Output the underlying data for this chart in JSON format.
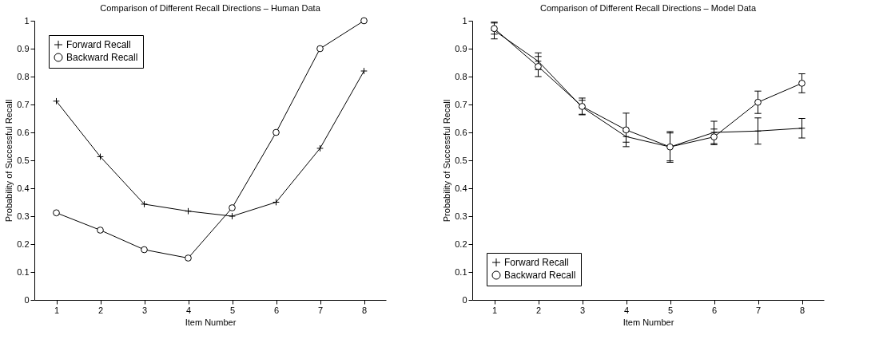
{
  "chart_data": [
    {
      "type": "line",
      "title": "Comparison of Different Recall Directions – Human Data",
      "xlabel": "Item Number",
      "ylabel": "Probability of Successful Recall",
      "x": [
        1,
        2,
        3,
        4,
        5,
        6,
        7,
        8
      ],
      "xlim": [
        0.5,
        8.5
      ],
      "xticks": [
        1,
        2,
        3,
        4,
        5,
        6,
        7,
        8
      ],
      "ylim": [
        0,
        1
      ],
      "yticks": [
        0,
        0.1,
        0.2,
        0.3,
        0.4,
        0.5,
        0.6,
        0.7,
        0.8,
        0.9,
        1
      ],
      "grid": false,
      "legend": "top left",
      "series": [
        {
          "name": "Forward Recall",
          "color": "#000000",
          "marker": "cross",
          "values": [
            0.712,
            0.513,
            0.343,
            0.318,
            0.3,
            0.35,
            0.543,
            0.82
          ]
        },
        {
          "name": "Backward Recall",
          "color": "#000000",
          "marker": "circle",
          "values": [
            0.312,
            0.25,
            0.18,
            0.15,
            0.33,
            0.6,
            0.9,
            1.0
          ]
        }
      ]
    },
    {
      "type": "line",
      "title": "Comparison of Different Recall Directions – Model Data",
      "xlabel": "Item Number",
      "ylabel": "Probability of Successful Recall",
      "x": [
        1,
        2,
        3,
        4,
        5,
        6,
        7,
        8
      ],
      "xlim": [
        0.5,
        8.5
      ],
      "xticks": [
        1,
        2,
        3,
        4,
        5,
        6,
        7,
        8
      ],
      "ylim": [
        0,
        1
      ],
      "yticks": [
        0,
        0.1,
        0.2,
        0.3,
        0.4,
        0.5,
        0.6,
        0.7,
        0.8,
        0.9,
        1
      ],
      "grid": false,
      "legend": "bottom left",
      "series": [
        {
          "name": "Forward Recall",
          "color": "#000000",
          "marker": "cross",
          "values": [
            0.965,
            0.855,
            0.69,
            0.585,
            0.548,
            0.6,
            0.605,
            0.615
          ],
          "errors": [
            0.03,
            0.03,
            0.025,
            0.02,
            0.05,
            0.04,
            0.047,
            0.035
          ]
        },
        {
          "name": "Backward Recall",
          "color": "#000000",
          "marker": "circle",
          "values": [
            0.972,
            0.836,
            0.693,
            0.609,
            0.548,
            0.584,
            0.708,
            0.776
          ],
          "errors": [
            0.02,
            0.036,
            0.03,
            0.06,
            0.055,
            0.028,
            0.04,
            0.034
          ]
        }
      ]
    }
  ]
}
